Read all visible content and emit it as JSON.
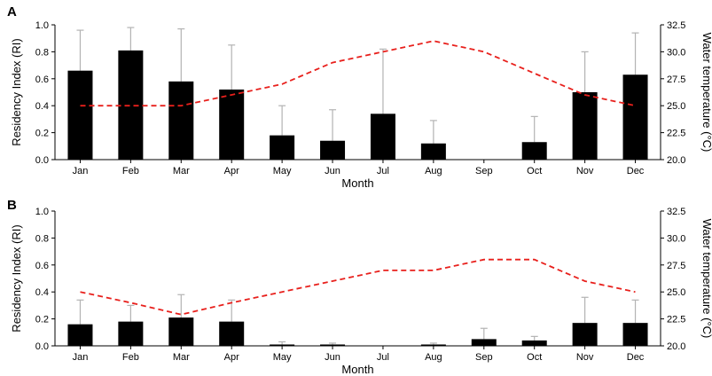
{
  "chart_data": [
    {
      "type": "bar",
      "panel_label": "A",
      "categories": [
        "Jan",
        "Feb",
        "Mar",
        "Apr",
        "May",
        "Jun",
        "Jul",
        "Aug",
        "Sep",
        "Oct",
        "Nov",
        "Dec"
      ],
      "series": [
        {
          "values": [
            0.66,
            0.81,
            0.58,
            0.52,
            0.18,
            0.14,
            0.34,
            0.12,
            0.0,
            0.13,
            0.5,
            0.63
          ],
          "error_upper": [
            0.96,
            0.98,
            0.97,
            0.85,
            0.4,
            0.37,
            0.82,
            0.29,
            0.0,
            0.32,
            0.8,
            0.94
          ],
          "color": "#000000",
          "error_color": "#b3b3b3"
        }
      ],
      "line_series": [
        {
          "values": [
            25.0,
            25.0,
            25.0,
            26.0,
            27.0,
            29.0,
            30.0,
            31.0,
            30.0,
            28.0,
            26.0,
            25.0
          ],
          "color": "#e8201c",
          "style": "dashed"
        }
      ],
      "xlabel": "Month",
      "ylabel": "Residency Index (RI)",
      "y2label": "Water temperature (°C)",
      "ylim": [
        0,
        1
      ],
      "y2lim": [
        20,
        32.5
      ],
      "yticks": [
        "0.0",
        "0.2",
        "0.4",
        "0.6",
        "0.8",
        "1.0"
      ],
      "y2ticks": [
        "20.0",
        "22.5",
        "25.0",
        "27.5",
        "30.0",
        "32.5"
      ]
    },
    {
      "type": "bar",
      "panel_label": "B",
      "categories": [
        "Jan",
        "Feb",
        "Mar",
        "Apr",
        "May",
        "Jun",
        "Jul",
        "Aug",
        "Sep",
        "Oct",
        "Nov",
        "Dec"
      ],
      "series": [
        {
          "values": [
            0.16,
            0.18,
            0.21,
            0.18,
            0.01,
            0.01,
            0.0,
            0.01,
            0.05,
            0.04,
            0.17,
            0.17
          ],
          "error_upper": [
            0.34,
            0.3,
            0.38,
            0.34,
            0.03,
            0.02,
            0.0,
            0.02,
            0.13,
            0.07,
            0.36,
            0.34
          ],
          "color": "#000000",
          "error_color": "#b3b3b3"
        }
      ],
      "line_series": [
        {
          "values": [
            25.0,
            24.0,
            22.9,
            24.0,
            25.0,
            26.0,
            27.0,
            27.0,
            28.0,
            28.0,
            26.0,
            25.0
          ],
          "color": "#e8201c",
          "style": "dashed"
        }
      ],
      "xlabel": "Month",
      "ylabel": "Residency Index (RI)",
      "y2label": "Water temperature (°C)",
      "ylim": [
        0,
        1
      ],
      "y2lim": [
        20,
        32.5
      ],
      "yticks": [
        "0.0",
        "0.2",
        "0.4",
        "0.6",
        "0.8",
        "1.0"
      ],
      "y2ticks": [
        "20.0",
        "22.5",
        "25.0",
        "27.5",
        "30.0",
        "32.5"
      ]
    }
  ]
}
